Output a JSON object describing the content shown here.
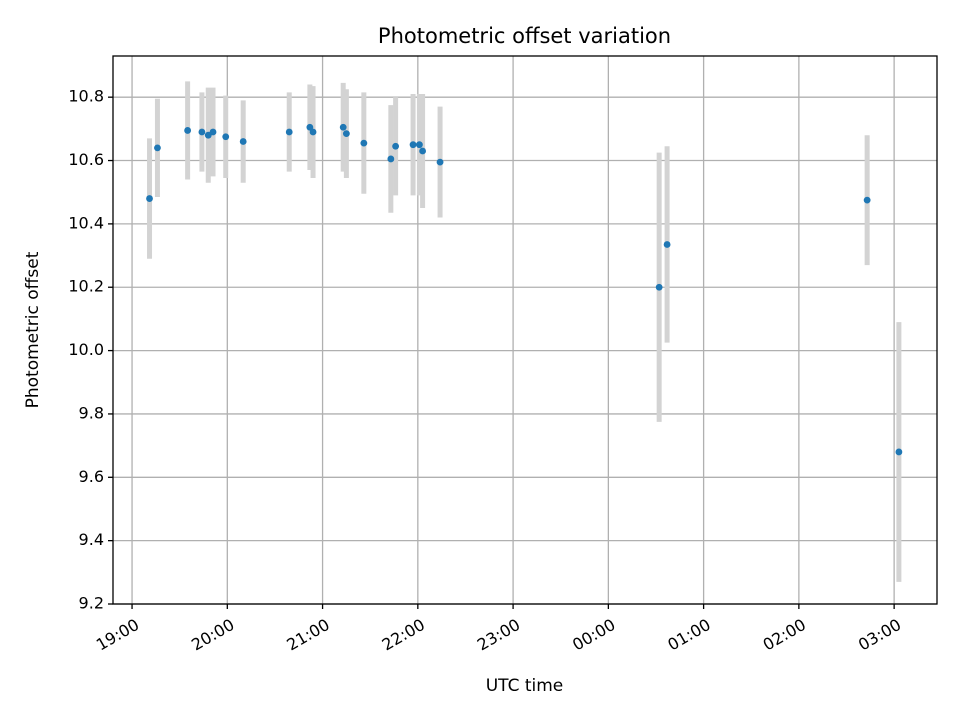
{
  "chart_data": {
    "type": "scatter",
    "title": "Photometric offset variation",
    "xlabel": "UTC time",
    "ylabel": "Photometric offset",
    "x_unit": "UTC time (HH:MM), axis spans 19:00 to 03:00 of the following day",
    "xlim": [
      "18:48",
      "03:27"
    ],
    "ylim": [
      9.2,
      10.93
    ],
    "grid": true,
    "x_ticks": [
      "19:00",
      "20:00",
      "21:00",
      "22:00",
      "23:00",
      "00:00",
      "01:00",
      "02:00",
      "03:00"
    ],
    "y_ticks": [
      "9.2",
      "9.4",
      "9.6",
      "9.8",
      "10.0",
      "10.2",
      "10.4",
      "10.6",
      "10.8"
    ],
    "colors": {
      "points": "#1f77b4",
      "errorbars": "#d3d3d3"
    },
    "series": [
      {
        "points": [
          {
            "x": "19:11",
            "y": 10.48,
            "err": 0.19
          },
          {
            "x": "19:16",
            "y": 10.64,
            "err": 0.155
          },
          {
            "x": "19:35",
            "y": 10.695,
            "err": 0.155
          },
          {
            "x": "19:44",
            "y": 10.69,
            "err": 0.125
          },
          {
            "x": "19:48",
            "y": 10.68,
            "err": 0.15
          },
          {
            "x": "19:51",
            "y": 10.69,
            "err": 0.14
          },
          {
            "x": "19:59",
            "y": 10.675,
            "err": 0.13
          },
          {
            "x": "20:10",
            "y": 10.66,
            "err": 0.13
          },
          {
            "x": "20:39",
            "y": 10.69,
            "err": 0.125
          },
          {
            "x": "20:52",
            "y": 10.705,
            "err": 0.135
          },
          {
            "x": "20:54",
            "y": 10.69,
            "err": 0.145
          },
          {
            "x": "21:13",
            "y": 10.705,
            "err": 0.14
          },
          {
            "x": "21:15",
            "y": 10.685,
            "err": 0.14
          },
          {
            "x": "21:26",
            "y": 10.655,
            "err": 0.16
          },
          {
            "x": "21:43",
            "y": 10.605,
            "err": 0.17
          },
          {
            "x": "21:46",
            "y": 10.645,
            "err": 0.155
          },
          {
            "x": "21:57",
            "y": 10.65,
            "err": 0.16
          },
          {
            "x": "22:01",
            "y": 10.65,
            "err": 0.16
          },
          {
            "x": "22:03",
            "y": 10.63,
            "err": 0.18
          },
          {
            "x": "22:14",
            "y": 10.595,
            "err": 0.175
          },
          {
            "x": "00:32",
            "y": 10.2,
            "err": 0.425
          },
          {
            "x": "00:37",
            "y": 10.335,
            "err": 0.31
          },
          {
            "x": "02:43",
            "y": 10.475,
            "err": 0.205
          },
          {
            "x": "03:03",
            "y": 9.68,
            "err": 0.41
          }
        ]
      }
    ]
  }
}
